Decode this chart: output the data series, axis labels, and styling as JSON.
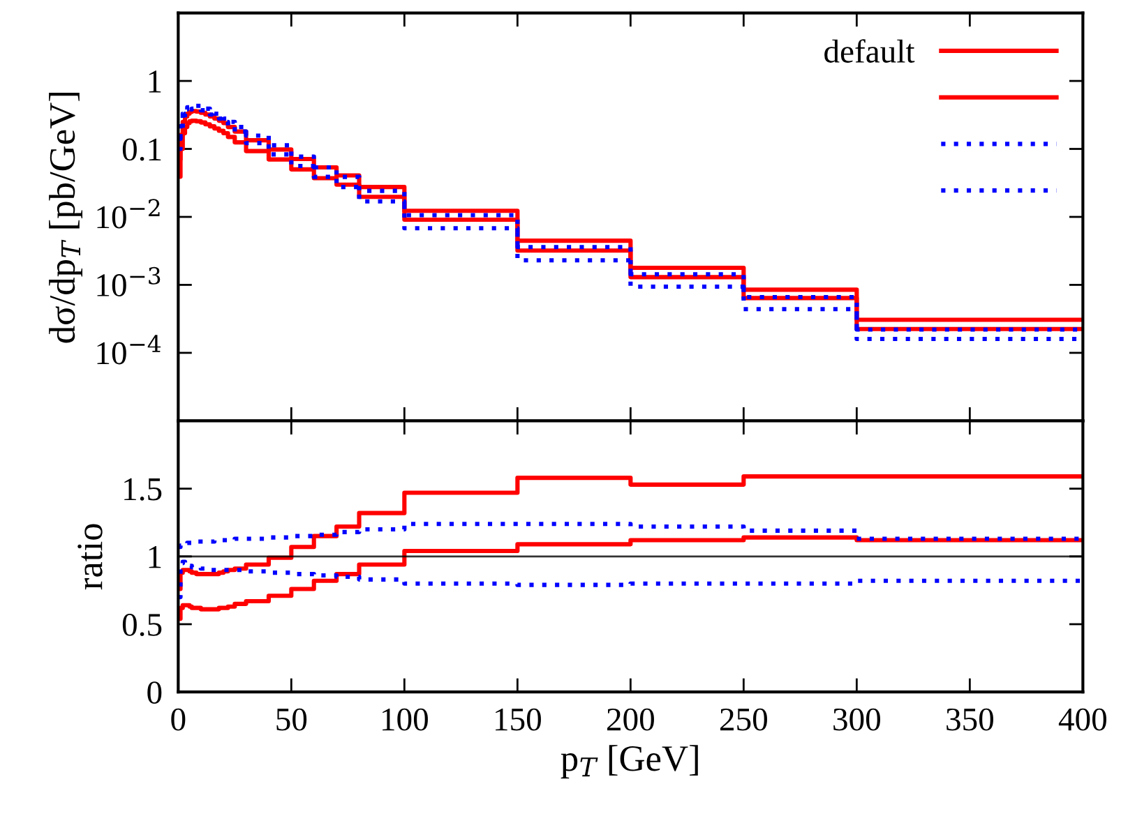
{
  "chart_data": [
    {
      "type": "step",
      "ylabel": "dσ/dp$_{T}$ [pb/GeV]",
      "log": "y",
      "legend": "top right",
      "tick_labels": "y",
      "grid": false,
      "x": [
        0,
        1,
        2,
        3,
        4,
        5,
        6,
        8,
        10,
        12,
        14,
        16,
        18,
        20,
        22,
        25,
        30,
        40,
        50,
        60,
        70,
        80,
        100,
        150,
        200,
        250,
        300,
        400
      ],
      "xlim": [
        0,
        400
      ],
      "xticks": [
        0,
        50,
        100,
        150,
        200,
        250,
        300,
        350,
        400
      ],
      "ylim": [
        1e-05,
        10
      ],
      "yticks": [
        {
          "value": 1e-05,
          "label": null
        },
        {
          "value": 0.0001,
          "label": "10$^{−4}$"
        },
        {
          "value": 0.001,
          "label": "10$^{−3}$"
        },
        {
          "value": 0.01,
          "label": "10$^{−2}$"
        },
        {
          "value": 0.1,
          "label": "0.1"
        },
        {
          "value": 1,
          "label": "1"
        },
        {
          "value": 10,
          "label": null
        }
      ],
      "series": [
        {
          "name": "default",
          "color": "#ff0000",
          "line_style": "solid",
          "values": [
            0.07,
            0.16,
            0.25,
            0.3,
            0.33,
            0.35,
            0.36,
            0.355,
            0.34,
            0.32,
            0.3,
            0.28,
            0.26,
            0.24,
            0.21,
            0.18,
            0.134,
            0.098,
            0.071,
            0.0535,
            0.0408,
            0.0275,
            0.0123,
            0.00446,
            0.00178,
            0.00085,
            0.000307,
            0.000307
          ]
        },
        {
          "color": "#ff0000",
          "line_style": "solid",
          "values": [
            0.039,
            0.1,
            0.17,
            0.21,
            0.24,
            0.255,
            0.26,
            0.255,
            0.245,
            0.23,
            0.215,
            0.2,
            0.185,
            0.17,
            0.15,
            0.125,
            0.093,
            0.07,
            0.05,
            0.0371,
            0.0298,
            0.0197,
            0.0091,
            0.0032,
            0.0013,
            0.00064,
            0.000224,
            0.000224
          ]
        },
        {
          "color": "#0000ff",
          "line_style": "dotted",
          "values": [
            0.14,
            0.25,
            0.33,
            0.38,
            0.41,
            0.42,
            0.43,
            0.43,
            0.41,
            0.39,
            0.36,
            0.33,
            0.31,
            0.28,
            0.25,
            0.21,
            0.157,
            0.113,
            0.077,
            0.0535,
            0.0388,
            0.0242,
            0.0106,
            0.0036,
            0.00143,
            0.00066,
            0.00022,
            0.00022
          ]
        },
        {
          "color": "#0000ff",
          "line_style": "dotted",
          "values": [
            0.1,
            0.2,
            0.28,
            0.33,
            0.36,
            0.38,
            0.39,
            0.385,
            0.37,
            0.35,
            0.32,
            0.3,
            0.28,
            0.25,
            0.22,
            0.18,
            0.122,
            0.083,
            0.056,
            0.0388,
            0.0275,
            0.0169,
            0.0068,
            0.0023,
            0.00094,
            0.00044,
            0.00016,
            0.00016
          ]
        }
      ]
    },
    {
      "type": "step",
      "xlabel": "p$_{T}$ [GeV]",
      "ylabel": "ratio",
      "grid": false,
      "x": [
        0,
        1,
        2,
        3,
        4,
        5,
        6,
        8,
        10,
        12,
        14,
        16,
        18,
        20,
        22,
        25,
        30,
        40,
        50,
        60,
        70,
        80,
        100,
        150,
        200,
        250,
        300,
        400
      ],
      "xlim": [
        0,
        400
      ],
      "xticks": [
        0,
        50,
        100,
        150,
        200,
        250,
        300,
        350,
        400
      ],
      "ylim": [
        0,
        2
      ],
      "yticks": [
        0,
        0.5,
        1,
        1.5,
        {
          "value": 2,
          "label": null
        }
      ],
      "ref_lines": [
        {
          "axis": "y",
          "value": 1,
          "color": "#000000",
          "line_style": "solid"
        }
      ],
      "series": [
        {
          "color": "#ff0000",
          "line_style": "solid",
          "values": [
            0.76,
            0.88,
            0.9,
            0.9,
            0.9,
            0.89,
            0.88,
            0.87,
            0.87,
            0.87,
            0.87,
            0.87,
            0.88,
            0.89,
            0.9,
            0.91,
            0.94,
            0.99,
            1.07,
            1.15,
            1.22,
            1.32,
            1.47,
            1.58,
            1.53,
            1.59,
            1.59,
            1.59
          ]
        },
        {
          "color": "#ff0000",
          "line_style": "solid",
          "values": [
            0.54,
            0.62,
            0.64,
            0.64,
            0.64,
            0.63,
            0.62,
            0.62,
            0.61,
            0.61,
            0.61,
            0.61,
            0.62,
            0.62,
            0.63,
            0.65,
            0.67,
            0.71,
            0.76,
            0.82,
            0.87,
            0.94,
            1.04,
            1.09,
            1.12,
            1.14,
            1.12,
            1.12
          ]
        },
        {
          "color": "#0000ff",
          "line_style": "dotted",
          "values": [
            1.07,
            1.08,
            1.09,
            1.09,
            1.1,
            1.1,
            1.1,
            1.11,
            1.11,
            1.11,
            1.11,
            1.12,
            1.12,
            1.12,
            1.12,
            1.13,
            1.13,
            1.14,
            1.15,
            1.16,
            1.18,
            1.2,
            1.24,
            1.24,
            1.22,
            1.19,
            1.13,
            1.13
          ]
        },
        {
          "color": "#0000ff",
          "line_style": "dotted",
          "values": [
            0.7,
            0.95,
            0.96,
            0.95,
            0.94,
            0.93,
            0.92,
            0.92,
            0.91,
            0.91,
            0.9,
            0.9,
            0.9,
            0.9,
            0.9,
            0.9,
            0.89,
            0.88,
            0.87,
            0.86,
            0.85,
            0.83,
            0.8,
            0.79,
            0.8,
            0.8,
            0.82,
            0.82
          ]
        }
      ]
    }
  ]
}
